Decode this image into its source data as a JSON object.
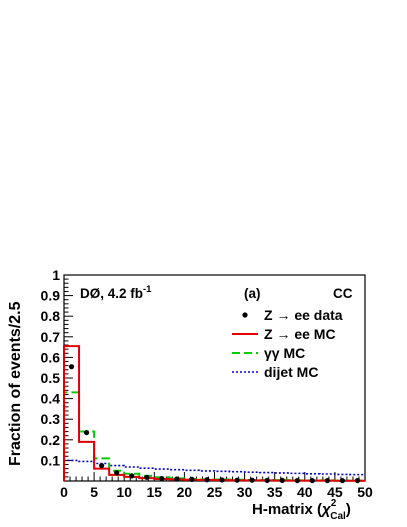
{
  "chart_data": {
    "type": "line",
    "experiment_label": "DØ, 4.2 fb",
    "lumi_superscript": "-1",
    "panel_label": "(a)",
    "region_label": "CC",
    "xlabel_main": "H-matrix (",
    "xlabel_chi": "χ",
    "xlabel_sup": "2",
    "xlabel_sub": "Cal",
    "xlabel_close": ")",
    "ylabel": "Fraction of events/2.5",
    "xlim": [
      0,
      50
    ],
    "ylim": [
      0,
      1
    ],
    "x_ticks": [
      "0",
      "5",
      "10",
      "15",
      "20",
      "25",
      "30",
      "35",
      "40",
      "45",
      "50"
    ],
    "y_ticks": [
      "0.1",
      "0.2",
      "0.3",
      "0.4",
      "0.5",
      "0.6",
      "0.7",
      "0.8",
      "0.9",
      "1"
    ],
    "bin_edges": [
      0,
      2.5,
      5,
      7.5,
      10,
      12.5,
      15,
      17.5,
      20,
      22.5,
      25,
      27.5,
      30,
      32.5,
      35,
      37.5,
      40,
      42.5,
      45,
      47.5,
      50
    ],
    "series": [
      {
        "name": "Z → ee data",
        "style": "points",
        "color": "#000000",
        "x": [
          1.25,
          3.75,
          6.25,
          8.75,
          11.25,
          13.75,
          16.25,
          18.75,
          21.25,
          23.75,
          26.25,
          28.75,
          31.25,
          33.75,
          36.25,
          38.75,
          41.25,
          43.75,
          46.25,
          48.75
        ],
        "values": [
          0.555,
          0.235,
          0.075,
          0.04,
          0.025,
          0.018,
          0.012,
          0.01,
          0.008,
          0.006,
          0.005,
          0.004,
          0.004,
          0.003,
          0.003,
          0.002,
          0.002,
          0.002,
          0.002,
          0.002
        ]
      },
      {
        "name": "Z → ee MC",
        "style": "solid",
        "color": "#e00000",
        "values": [
          0.655,
          0.19,
          0.06,
          0.03,
          0.02,
          0.014,
          0.01,
          0.008,
          0.006,
          0.005,
          0.004,
          0.003,
          0.003,
          0.003,
          0.002,
          0.002,
          0.002,
          0.002,
          0.001,
          0.001
        ]
      },
      {
        "name": "γγ MC",
        "style": "dashed",
        "color": "#00cc00",
        "values": [
          0.43,
          0.24,
          0.11,
          0.05,
          0.035,
          0.025,
          0.018,
          0.013,
          0.01,
          0.008,
          0.007,
          0.006,
          0.005,
          0.004,
          0.004,
          0.003,
          0.003,
          0.003,
          0.002,
          0.002
        ]
      },
      {
        "name": "dijet MC",
        "style": "dotted",
        "color": "#0000cc",
        "values": [
          0.1,
          0.095,
          0.085,
          0.075,
          0.068,
          0.062,
          0.058,
          0.055,
          0.052,
          0.049,
          0.047,
          0.045,
          0.043,
          0.041,
          0.039,
          0.037,
          0.035,
          0.034,
          0.032,
          0.031
        ]
      }
    ],
    "legend_placement": "top-right",
    "grid": false
  }
}
